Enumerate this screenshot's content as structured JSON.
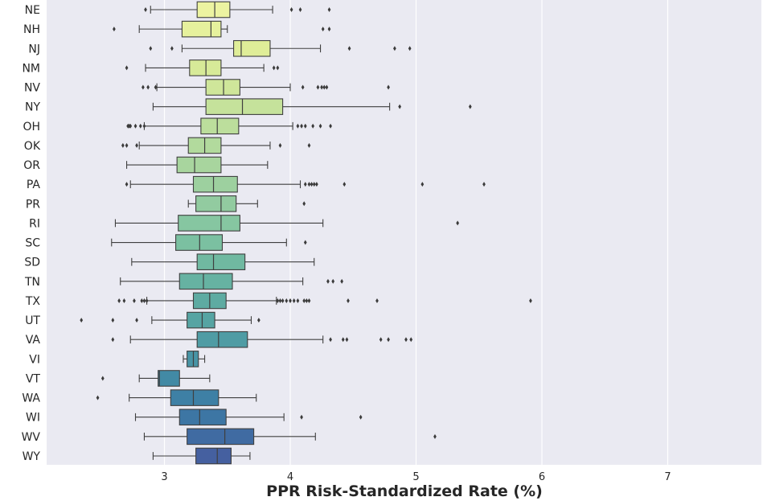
{
  "chart_data": {
    "type": "boxplot",
    "orientation": "horizontal",
    "xlabel": "PPR Risk-Standardized Rate (%)",
    "ylabel": "",
    "xlim": [
      2.1,
      7.75
    ],
    "x_ticks": [
      3,
      4,
      5,
      6,
      7
    ],
    "grid": true,
    "background": "#eaeaf2",
    "box_edge_color": "#3f3f3f",
    "categories": [
      "NE",
      "NH",
      "NJ",
      "NM",
      "NV",
      "NY",
      "OH",
      "OK",
      "OR",
      "PA",
      "PR",
      "RI",
      "SC",
      "SD",
      "TN",
      "TX",
      "UT",
      "VA",
      "VI",
      "VT",
      "WA",
      "WI",
      "WV",
      "WY"
    ],
    "boxes": [
      {
        "state": "NE",
        "whisker_low": 2.89,
        "q1": 3.26,
        "median": 3.4,
        "q3": 3.52,
        "whisker_high": 3.86,
        "outliers": [
          2.85,
          4.01,
          4.08,
          4.31
        ],
        "color": "#ecf3a1"
      },
      {
        "state": "NH",
        "whisker_low": 2.8,
        "q1": 3.14,
        "median": 3.37,
        "q3": 3.45,
        "whisker_high": 3.5,
        "outliers": [
          2.6,
          4.26,
          4.31
        ],
        "color": "#e6f19d"
      },
      {
        "state": "NJ",
        "whisker_low": 3.14,
        "q1": 3.55,
        "median": 3.61,
        "q3": 3.84,
        "whisker_high": 4.24,
        "outliers": [
          2.89,
          3.06,
          4.47,
          4.83,
          4.95
        ],
        "color": "#dfed98"
      },
      {
        "state": "NM",
        "whisker_low": 2.85,
        "q1": 3.2,
        "median": 3.33,
        "q3": 3.45,
        "whisker_high": 3.79,
        "outliers": [
          2.7,
          3.87,
          3.9
        ],
        "color": "#d7ea98"
      },
      {
        "state": "NV",
        "whisker_low": 2.94,
        "q1": 3.33,
        "median": 3.47,
        "q3": 3.6,
        "whisker_high": 4.0,
        "outliers": [
          2.83,
          2.87,
          2.93,
          4.1,
          4.22,
          4.25,
          4.27,
          4.29,
          4.78
        ],
        "color": "#cfe69a"
      },
      {
        "state": "NY",
        "whisker_low": 2.91,
        "q1": 3.33,
        "median": 3.62,
        "q3": 3.94,
        "whisker_high": 4.79,
        "outliers": [
          4.87,
          5.43
        ],
        "color": "#c5e29b"
      },
      {
        "state": "OH",
        "whisker_low": 2.84,
        "q1": 3.29,
        "median": 3.42,
        "q3": 3.59,
        "whisker_high": 4.02,
        "outliers": [
          2.71,
          2.72,
          2.73,
          2.77,
          2.81,
          2.84,
          4.06,
          4.09,
          4.12,
          4.18,
          4.24,
          4.32
        ],
        "color": "#bcde9c"
      },
      {
        "state": "OK",
        "whisker_low": 2.8,
        "q1": 3.19,
        "median": 3.32,
        "q3": 3.45,
        "whisker_high": 3.84,
        "outliers": [
          2.67,
          2.7,
          2.78,
          3.92,
          4.15
        ],
        "color": "#b2da9d"
      },
      {
        "state": "OR",
        "whisker_low": 2.7,
        "q1": 3.1,
        "median": 3.24,
        "q3": 3.45,
        "whisker_high": 3.82,
        "outliers": [],
        "color": "#a8d59e"
      },
      {
        "state": "PA",
        "whisker_low": 2.73,
        "q1": 3.23,
        "median": 3.39,
        "q3": 3.58,
        "whisker_high": 4.08,
        "outliers": [
          2.7,
          4.12,
          4.15,
          4.17,
          4.19,
          4.21,
          4.43,
          5.05,
          5.54
        ],
        "color": "#9dd09f"
      },
      {
        "state": "PR",
        "whisker_low": 3.19,
        "q1": 3.25,
        "median": 3.45,
        "q3": 3.57,
        "whisker_high": 3.74,
        "outliers": [
          4.11
        ],
        "color": "#92cba0"
      },
      {
        "state": "RI",
        "whisker_low": 2.61,
        "q1": 3.11,
        "median": 3.45,
        "q3": 3.6,
        "whisker_high": 4.26,
        "outliers": [
          5.33
        ],
        "color": "#86c6a1"
      },
      {
        "state": "SC",
        "whisker_low": 2.58,
        "q1": 3.09,
        "median": 3.28,
        "q3": 3.46,
        "whisker_high": 3.97,
        "outliers": [
          4.12
        ],
        "color": "#7bc0a1"
      },
      {
        "state": "SD",
        "whisker_low": 2.74,
        "q1": 3.26,
        "median": 3.39,
        "q3": 3.64,
        "whisker_high": 4.19,
        "outliers": [],
        "color": "#70b9a1"
      },
      {
        "state": "TN",
        "whisker_low": 2.65,
        "q1": 3.12,
        "median": 3.31,
        "q3": 3.54,
        "whisker_high": 4.1,
        "outliers": [
          4.3,
          4.34,
          4.41
        ],
        "color": "#66b2a2"
      },
      {
        "state": "TX",
        "whisker_low": 2.86,
        "q1": 3.23,
        "median": 3.36,
        "q3": 3.49,
        "whisker_high": 3.89,
        "outliers": [
          2.64,
          2.68,
          2.76,
          2.82,
          2.84,
          2.86,
          3.9,
          3.92,
          3.94,
          3.97,
          4.0,
          4.03,
          4.06,
          4.11,
          4.13,
          4.15,
          4.46,
          4.69,
          5.91
        ],
        "color": "#5eaba2"
      },
      {
        "state": "UT",
        "whisker_low": 2.9,
        "q1": 3.18,
        "median": 3.3,
        "q3": 3.4,
        "whisker_high": 3.69,
        "outliers": [
          2.34,
          2.59,
          2.78,
          3.75
        ],
        "color": "#56a4a3"
      },
      {
        "state": "VA",
        "whisker_low": 2.73,
        "q1": 3.26,
        "median": 3.43,
        "q3": 3.66,
        "whisker_high": 4.26,
        "outliers": [
          2.59,
          4.32,
          4.42,
          4.45,
          4.72,
          4.78,
          4.92,
          4.96
        ],
        "color": "#4f9ca4"
      },
      {
        "state": "VI",
        "whisker_low": 3.15,
        "q1": 3.18,
        "median": 3.23,
        "q3": 3.27,
        "whisker_high": 3.32,
        "outliers": [],
        "color": "#4894a5"
      },
      {
        "state": "VT",
        "whisker_low": 2.8,
        "q1": 2.95,
        "median": 2.96,
        "q3": 3.12,
        "whisker_high": 3.36,
        "outliers": [
          2.51
        ],
        "color": "#428aa5"
      },
      {
        "state": "WA",
        "whisker_low": 2.72,
        "q1": 3.05,
        "median": 3.23,
        "q3": 3.43,
        "whisker_high": 3.73,
        "outliers": [
          2.47
        ],
        "color": "#3e80a5"
      },
      {
        "state": "WI",
        "whisker_low": 2.77,
        "q1": 3.12,
        "median": 3.28,
        "q3": 3.49,
        "whisker_high": 3.95,
        "outliers": [
          4.09,
          4.56
        ],
        "color": "#3d76a4"
      },
      {
        "state": "WV",
        "whisker_low": 2.84,
        "q1": 3.18,
        "median": 3.48,
        "q3": 3.71,
        "whisker_high": 4.2,
        "outliers": [
          5.15
        ],
        "color": "#406ba2"
      },
      {
        "state": "WY",
        "whisker_low": 2.91,
        "q1": 3.25,
        "median": 3.42,
        "q3": 3.53,
        "whisker_high": 3.68,
        "outliers": [],
        "color": "#4560a0"
      }
    ]
  }
}
